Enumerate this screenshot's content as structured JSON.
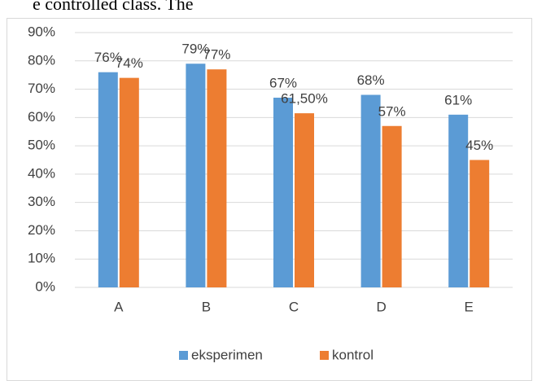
{
  "chart_data": {
    "type": "bar",
    "annotations": [
      "e controlled class. The"
    ],
    "categories": [
      "A",
      "B",
      "C",
      "D",
      "E"
    ],
    "series": [
      {
        "name": "eksperimen",
        "color": "#5b9bd5",
        "values": [
          76,
          79,
          67,
          68,
          61
        ],
        "value_labels": [
          "76%",
          "79%",
          "67%",
          "68%",
          "61%"
        ]
      },
      {
        "name": "kontrol",
        "color": "#ed7d31",
        "values": [
          74,
          77,
          61.5,
          57,
          45
        ],
        "value_labels": [
          "74%",
          "77%",
          "61,50%",
          "57%",
          "45%"
        ]
      }
    ],
    "ylim": [
      0,
      90
    ],
    "yticks": [
      {
        "value": 0,
        "label": "0%"
      },
      {
        "value": 10,
        "label": "10%"
      },
      {
        "value": 20,
        "label": "20%"
      },
      {
        "value": 30,
        "label": "30%"
      },
      {
        "value": 40,
        "label": "40%"
      },
      {
        "value": 50,
        "label": "50%"
      },
      {
        "value": 60,
        "label": "60%"
      },
      {
        "value": 70,
        "label": "70%"
      },
      {
        "value": 80,
        "label": "80%"
      },
      {
        "value": 90,
        "label": "90%"
      }
    ],
    "grid": true,
    "legend": "bottom"
  }
}
